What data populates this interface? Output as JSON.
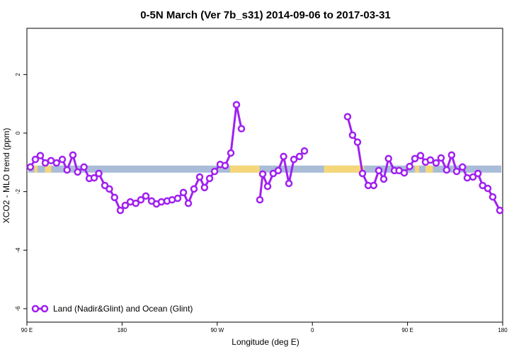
{
  "chart_data": {
    "type": "line",
    "title": "0-5N March (Ver 7b_s31)   2014-09-06 to 2017-03-31",
    "x_label": "Longitude (deg E)",
    "y_label": "XCO2 - MLO trend (ppm)",
    "xlim": [
      90,
      540
    ],
    "ylim": [
      -6.46,
      3.58
    ],
    "xticks": [
      {
        "value": 90,
        "label": "90 E"
      },
      180,
      {
        "value": 270,
        "label": "90 W"
      },
      {
        "value": 360,
        "label": "0"
      },
      {
        "value": 450,
        "label": "90 E"
      },
      {
        "value": 540,
        "label": "180"
      }
    ],
    "yticks": [
      2,
      0,
      -2,
      -4,
      -6
    ],
    "legend": "bottom-left",
    "band": {
      "value": -1.23,
      "color": "#a9bcd8",
      "highlight_color": "#f5d77a",
      "highlights": [
        [
          97,
          100
        ],
        [
          107,
          113
        ],
        [
          282,
          310
        ],
        [
          371,
          409
        ],
        [
          457,
          461
        ],
        [
          467,
          474
        ]
      ]
    },
    "x": [
      93.3,
      98,
      102.7,
      107.4,
      112.8,
      118,
      123.5,
      128,
      133.5,
      138,
      144,
      149,
      153.6,
      158,
      163.7,
      168,
      172.9,
      178.4,
      183,
      187.8,
      193,
      197.8,
      202.5,
      207.9,
      212.5,
      217.2,
      222.6,
      227.3,
      232.6,
      238,
      242.7,
      248,
      253.4,
      258,
      262.8,
      267.5,
      272.8,
      277.5,
      282.9,
      288.2,
      292.9,
      300,
      310.3,
      313,
      317.7,
      323,
      327.7,
      332.8,
      337.8,
      342.5,
      347.8,
      352.5,
      370,
      393.3,
      398,
      402.7,
      407.4,
      412.8,
      418,
      422.8,
      427.5,
      432,
      437.6,
      442,
      446.9,
      452,
      457,
      462.3,
      467,
      471.6,
      477,
      481.7,
      487,
      491.7,
      496.5,
      502,
      506.5,
      511.9,
      516.6,
      521,
      525.9,
      530.6,
      537.3
    ],
    "series": [
      {
        "name": "Land (Nadir&Glint) and Ocean (Glint)",
        "color": "#a020f0",
        "values": [
          -1.16,
          -0.9,
          -0.77,
          -1.02,
          -0.94,
          -1.02,
          -0.9,
          -1.26,
          -0.75,
          -1.33,
          -1.16,
          -1.55,
          -1.53,
          -1.38,
          -1.79,
          -1.91,
          -2.2,
          -2.64,
          -2.47,
          -2.35,
          -2.4,
          -2.28,
          -2.15,
          -2.32,
          -2.42,
          -2.35,
          -2.32,
          -2.28,
          -2.23,
          -2.03,
          -2.4,
          -1.91,
          -1.5,
          -1.86,
          -1.55,
          -1.31,
          -1.07,
          -1.11,
          -0.68,
          0.97,
          0.15,
          null,
          -2.28,
          -1.4,
          -1.82,
          -1.38,
          -1.28,
          -0.8,
          -1.72,
          -0.9,
          -0.8,
          -0.61,
          null,
          0.56,
          -0.07,
          -0.31,
          -1.38,
          -1.79,
          -1.79,
          -1.28,
          -1.57,
          -0.87,
          -1.28,
          -1.28,
          -1.36,
          -1.14,
          -0.87,
          -0.77,
          -0.99,
          -0.92,
          -1.02,
          -0.85,
          -1.26,
          -0.75,
          -1.31,
          -1.16,
          -1.53,
          -1.5,
          -1.38,
          -1.79,
          -1.89,
          -2.18,
          -2.64
        ]
      }
    ]
  }
}
